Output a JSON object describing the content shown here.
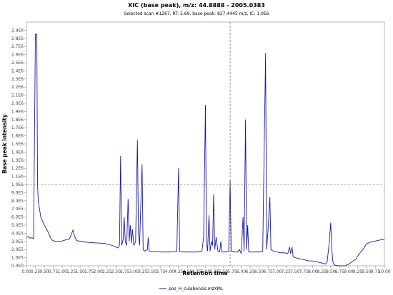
{
  "header": {
    "title": "XIC (base peak), m/z: 44.8888 - 2005.0383",
    "subtitle": "Selected scan #1267, RT: 5.69, base peak: 827.4445 m/z, IC: 1.0E6"
  },
  "chart_data": {
    "type": "line",
    "xlabel": "Retention time",
    "ylabel": "Base peak intensity",
    "xlim": [
      0,
      10
    ],
    "ylim": [
      0,
      3000000
    ],
    "x_ticks": [
      0.0,
      0.25,
      0.5,
      0.75,
      1.0,
      1.25,
      1.5,
      1.75,
      2.0,
      2.25,
      2.5,
      2.75,
      3.0,
      3.25,
      3.5,
      3.75,
      4.0,
      4.25,
      4.5,
      4.75,
      5.0,
      5.25,
      5.5,
      5.75,
      6.0,
      6.25,
      6.5,
      6.75,
      7.0,
      7.25,
      7.5,
      7.75,
      8.0,
      8.25,
      8.5,
      8.75,
      9.0,
      9.25,
      9.5,
      9.75,
      10.0
    ],
    "x_tick_labels": [
      "0.00",
      "0.25",
      "0.50",
      "0.75",
      "1.00",
      "1.25",
      "1.50",
      "1.75",
      "2.00",
      "2.25",
      "2.50",
      "2.75",
      "3.00",
      "3.25",
      "3.50",
      "3.75",
      "4.00",
      "4.25",
      "4.50",
      "4.75",
      "5.00",
      "5.25",
      "5.50",
      "5.75",
      "6.00",
      "6.25",
      "6.50",
      "6.75",
      "7.00",
      "7.25",
      "7.50",
      "7.75",
      "8.00",
      "8.25",
      "8.50",
      "8.75",
      "9.00",
      "9.25",
      "9.50",
      "9.75",
      "10.00"
    ],
    "y_ticks": [
      0,
      100000,
      200000,
      300000,
      400000,
      500000,
      600000,
      700000,
      800000,
      900000,
      1000000,
      1100000,
      1200000,
      1300000,
      1400000,
      1500000,
      1600000,
      1700000,
      1800000,
      1900000,
      2000000,
      2100000,
      2200000,
      2300000,
      2400000,
      2500000,
      2600000,
      2700000,
      2800000,
      2900000
    ],
    "y_tick_labels": [
      "0.0E0",
      "1.0E5",
      "2.0E5",
      "3.0E5",
      "4.0E5",
      "5.0E5",
      "6.0E5",
      "7.0E5",
      "8.0E5",
      "9.0E5",
      "1.0E6",
      "1.1E6",
      "1.2E6",
      "1.3E6",
      "1.4E6",
      "1.5E6",
      "1.6E6",
      "1.7E6",
      "1.8E6",
      "1.9E6",
      "2.0E6",
      "2.1E6",
      "2.2E6",
      "2.3E6",
      "2.4E6",
      "2.5E6",
      "2.6E6",
      "2.7E6",
      "2.8E6",
      "2.9E6"
    ],
    "grid": false,
    "crosshair": {
      "x": 5.69,
      "y": 1000000
    },
    "legend_position": "bottom-center",
    "series": [
      {
        "name": "pos_H_culabensis.mzXML",
        "color": "#1a1aa8",
        "points": [
          [
            0.0,
            350000
          ],
          [
            0.05,
            360000
          ],
          [
            0.1,
            340000
          ],
          [
            0.15,
            345000
          ],
          [
            0.2,
            335000
          ],
          [
            0.25,
            2850000
          ],
          [
            0.29,
            2850000
          ],
          [
            0.31,
            1000000
          ],
          [
            0.33,
            800000
          ],
          [
            0.4,
            600000
          ],
          [
            0.5,
            500000
          ],
          [
            0.6,
            420000
          ],
          [
            0.7,
            320000
          ],
          [
            0.8,
            300000
          ],
          [
            0.9,
            300000
          ],
          [
            1.0,
            305000
          ],
          [
            1.1,
            320000
          ],
          [
            1.2,
            330000
          ],
          [
            1.25,
            380000
          ],
          [
            1.3,
            440000
          ],
          [
            1.35,
            360000
          ],
          [
            1.4,
            310000
          ],
          [
            1.6,
            295000
          ],
          [
            1.8,
            285000
          ],
          [
            2.0,
            280000
          ],
          [
            2.2,
            275000
          ],
          [
            2.4,
            250000
          ],
          [
            2.55,
            220000
          ],
          [
            2.6,
            250000
          ],
          [
            2.63,
            1350000
          ],
          [
            2.66,
            250000
          ],
          [
            2.7,
            320000
          ],
          [
            2.73,
            600000
          ],
          [
            2.76,
            300000
          ],
          [
            2.8,
            250000
          ],
          [
            2.84,
            820000
          ],
          [
            2.87,
            300000
          ],
          [
            2.9,
            500000
          ],
          [
            2.93,
            280000
          ],
          [
            2.96,
            450000
          ],
          [
            3.0,
            250000
          ],
          [
            3.05,
            300000
          ],
          [
            3.1,
            1550000
          ],
          [
            3.13,
            400000
          ],
          [
            3.16,
            250000
          ],
          [
            3.23,
            1250000
          ],
          [
            3.26,
            200000
          ],
          [
            3.3,
            180000
          ],
          [
            3.38,
            200000
          ],
          [
            3.4,
            350000
          ],
          [
            3.43,
            180000
          ],
          [
            3.6,
            175000
          ],
          [
            3.8,
            170000
          ],
          [
            4.0,
            170000
          ],
          [
            4.1,
            175000
          ],
          [
            4.2,
            175000
          ],
          [
            4.25,
            1200000
          ],
          [
            4.28,
            175000
          ],
          [
            4.4,
            170000
          ],
          [
            4.6,
            170000
          ],
          [
            4.8,
            170000
          ],
          [
            4.9,
            180000
          ],
          [
            4.95,
            350000
          ],
          [
            5.0,
            1980000
          ],
          [
            5.03,
            300000
          ],
          [
            5.06,
            180000
          ],
          [
            5.1,
            620000
          ],
          [
            5.13,
            180000
          ],
          [
            5.17,
            300000
          ],
          [
            5.2,
            250000
          ],
          [
            5.23,
            880000
          ],
          [
            5.26,
            200000
          ],
          [
            5.3,
            350000
          ],
          [
            5.35,
            180000
          ],
          [
            5.4,
            170000
          ],
          [
            5.43,
            300000
          ],
          [
            5.46,
            170000
          ],
          [
            5.55,
            170000
          ],
          [
            5.65,
            180000
          ],
          [
            5.69,
            1050000
          ],
          [
            5.72,
            180000
          ],
          [
            5.8,
            170000
          ],
          [
            5.9,
            170000
          ],
          [
            5.95,
            200000
          ],
          [
            6.0,
            150000
          ],
          [
            6.05,
            600000
          ],
          [
            6.08,
            180000
          ],
          [
            6.12,
            1800000
          ],
          [
            6.15,
            200000
          ],
          [
            6.18,
            500000
          ],
          [
            6.21,
            170000
          ],
          [
            6.3,
            170000
          ],
          [
            6.4,
            170000
          ],
          [
            6.5,
            170000
          ],
          [
            6.6,
            180000
          ],
          [
            6.68,
            2620000
          ],
          [
            6.71,
            200000
          ],
          [
            6.75,
            450000
          ],
          [
            6.8,
            850000
          ],
          [
            6.83,
            200000
          ],
          [
            6.9,
            180000
          ],
          [
            7.0,
            170000
          ],
          [
            7.1,
            160000
          ],
          [
            7.2,
            160000
          ],
          [
            7.3,
            150000
          ],
          [
            7.35,
            230000
          ],
          [
            7.38,
            150000
          ],
          [
            7.42,
            230000
          ],
          [
            7.45,
            110000
          ],
          [
            7.5,
            100000
          ],
          [
            7.6,
            90000
          ],
          [
            7.7,
            80000
          ],
          [
            7.8,
            70000
          ],
          [
            7.9,
            60000
          ],
          [
            8.0,
            60000
          ],
          [
            8.1,
            50000
          ],
          [
            8.2,
            40000
          ],
          [
            8.3,
            30000
          ],
          [
            8.35,
            20000
          ],
          [
            8.4,
            50000
          ],
          [
            8.45,
            250000
          ],
          [
            8.5,
            530000
          ],
          [
            8.53,
            200000
          ],
          [
            8.56,
            50000
          ],
          [
            8.6,
            10000
          ],
          [
            8.7,
            0
          ],
          [
            8.8,
            0
          ],
          [
            8.9,
            0
          ],
          [
            9.0,
            20000
          ],
          [
            9.1,
            50000
          ],
          [
            9.2,
            80000
          ],
          [
            9.3,
            150000
          ],
          [
            9.4,
            200000
          ],
          [
            9.5,
            270000
          ],
          [
            9.6,
            290000
          ],
          [
            9.7,
            300000
          ],
          [
            9.8,
            310000
          ],
          [
            9.9,
            320000
          ],
          [
            10.0,
            320000
          ]
        ]
      }
    ]
  }
}
